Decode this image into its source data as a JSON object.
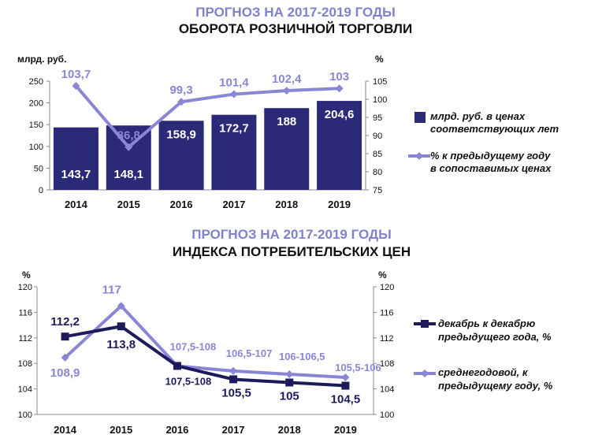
{
  "colors": {
    "bar": "#2b2a78",
    "line_light": "#8a86d6",
    "line_dark": "#1d1b5c",
    "title_accent": "#8080d0",
    "axis": "#888888"
  },
  "chart_data": [
    {
      "type": "bar",
      "title": "ПРОГНОЗ НА 2017-2019 ГОДЫ",
      "subtitle": "ОБОРОТА РОЗНИЧНОЙ ТОРГОВЛИ",
      "ylabel": "млрд. руб.",
      "y2label": "%",
      "ylim": [
        0,
        250
      ],
      "y2lim": [
        75,
        105
      ],
      "yticks": [
        "0",
        "50",
        "100",
        "150",
        "200",
        "250"
      ],
      "y2ticks": [
        "75",
        "80",
        "85",
        "90",
        "95",
        "100",
        "105"
      ],
      "categories": [
        "2014",
        "2015",
        "2016",
        "2017",
        "2018",
        "2019"
      ],
      "legend_position": "right",
      "series": [
        {
          "name": "млрд. руб. в ценах соответствующих лет",
          "type": "bar",
          "axis": "left",
          "values": [
            143.7,
            148.1,
            158.9,
            172.7,
            188,
            204.6
          ],
          "labels": [
            "143,7",
            "148,1",
            "158,9",
            "172,7",
            "188",
            "204,6"
          ]
        },
        {
          "name": "% к предыдущему году в сопоставимых ценах",
          "type": "line",
          "axis": "right",
          "values": [
            103.7,
            86.8,
            99.3,
            101.4,
            102.4,
            103
          ],
          "labels": [
            "103,7",
            "86,8",
            "99,3",
            "101,4",
            "102,4",
            "103"
          ]
        }
      ]
    },
    {
      "type": "line",
      "title": "ПРОГНОЗ НА 2017-2019 ГОДЫ",
      "subtitle": "ИНДЕКСА ПОТРЕБИТЕЛЬСКИХ ЦЕН",
      "ylabel": "%",
      "y2label": "%",
      "ylim": [
        100,
        120
      ],
      "yticks": [
        "100",
        "104",
        "108",
        "112",
        "116",
        "120"
      ],
      "categories": [
        "2014",
        "2015",
        "2016",
        "2017",
        "2018",
        "2019"
      ],
      "legend_position": "right",
      "series": [
        {
          "name": "декабрь к декабрю предыдущего года, %",
          "values": [
            112.2,
            113.8,
            107.6,
            105.5,
            105,
            104.5
          ],
          "labels": [
            "112,2",
            "113,8",
            "107,5-108",
            "105,5",
            "105",
            "104,5"
          ]
        },
        {
          "name": "среднегодовой, к предыдущему году, %",
          "values": [
            108.9,
            117,
            107.6,
            106.8,
            106.3,
            105.8
          ],
          "labels": [
            "108,9",
            "117",
            "107,5-108",
            "106,5-107",
            "106-106,5",
            "105,5-106"
          ]
        }
      ]
    }
  ]
}
